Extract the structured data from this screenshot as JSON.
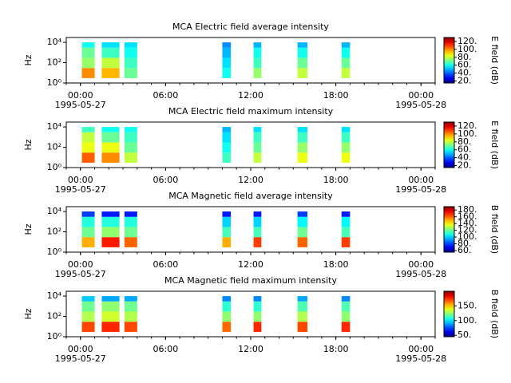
{
  "chart_data": [
    {
      "type": "heatmap",
      "title": "MCA  Electric field average intensity",
      "ylabel": "Hz",
      "yscale": "log",
      "xlim": [
        -1,
        25
      ],
      "xticks": [
        {
          "value": 0,
          "label": "00:00"
        },
        {
          "value": 6,
          "label": "06:00"
        },
        {
          "value": 12,
          "label": "12:00"
        },
        {
          "value": 18,
          "label": "18:00"
        },
        {
          "value": 24,
          "label": "00:00"
        }
      ],
      "x_dates": [
        {
          "value": 0,
          "label": "1995-05-27"
        },
        {
          "value": 24,
          "label": "1995-05-28"
        }
      ],
      "ylim": [
        1,
        30000
      ],
      "yticks": [
        {
          "value": 1,
          "label": "10⁰"
        },
        {
          "value": 100,
          "label": "10²"
        },
        {
          "value": 10000,
          "label": "10⁴"
        }
      ],
      "x_intervals": [
        [
          0.1,
          1.0
        ],
        [
          1.5,
          2.75
        ],
        [
          3.1,
          4.0
        ],
        [
          10.0,
          10.6
        ],
        [
          12.2,
          12.75
        ],
        [
          15.3,
          16.0
        ],
        [
          18.4,
          19.0
        ]
      ],
      "freq_bins": [
        3,
        30,
        300,
        3000,
        10000
      ],
      "values": [
        [
          100,
          75,
          70,
          60
        ],
        [
          95,
          80,
          65,
          55
        ],
        [
          70,
          65,
          60,
          55
        ],
        [
          60,
          55,
          50,
          45
        ],
        [
          75,
          65,
          60,
          50
        ],
        [
          80,
          70,
          60,
          50
        ],
        [
          80,
          70,
          60,
          50
        ]
      ],
      "zlabel": "E field (dB)",
      "zlim": [
        15,
        130
      ],
      "zticks": [
        {
          "value": 20,
          "label": "20."
        },
        {
          "value": 40,
          "label": "40."
        },
        {
          "value": 60,
          "label": "60."
        },
        {
          "value": 80,
          "label": "80."
        },
        {
          "value": 100,
          "label": "100."
        },
        {
          "value": 120,
          "label": "120."
        }
      ]
    },
    {
      "type": "heatmap",
      "title": "MCA  Electric field maximum intensity",
      "ylabel": "Hz",
      "yscale": "log",
      "xlim": [
        -1,
        25
      ],
      "xticks": [
        {
          "value": 0,
          "label": "00:00"
        },
        {
          "value": 6,
          "label": "06:00"
        },
        {
          "value": 12,
          "label": "12:00"
        },
        {
          "value": 18,
          "label": "18:00"
        },
        {
          "value": 24,
          "label": "00:00"
        }
      ],
      "x_dates": [
        {
          "value": 0,
          "label": "1995-05-27"
        },
        {
          "value": 24,
          "label": "1995-05-28"
        }
      ],
      "ylim": [
        1,
        30000
      ],
      "yticks": [
        {
          "value": 1,
          "label": "10⁰"
        },
        {
          "value": 100,
          "label": "10²"
        },
        {
          "value": 10000,
          "label": "10⁴"
        }
      ],
      "x_intervals": [
        [
          0.1,
          1.0
        ],
        [
          1.5,
          2.75
        ],
        [
          3.1,
          4.0
        ],
        [
          10.0,
          10.6
        ],
        [
          12.2,
          12.75
        ],
        [
          15.3,
          16.0
        ],
        [
          18.4,
          19.0
        ]
      ],
      "freq_bins": [
        3,
        30,
        300,
        3000,
        10000
      ],
      "values": [
        [
          105,
          85,
          80,
          65
        ],
        [
          100,
          85,
          70,
          60
        ],
        [
          80,
          70,
          65,
          60
        ],
        [
          65,
          60,
          55,
          50
        ],
        [
          80,
          70,
          65,
          55
        ],
        [
          85,
          75,
          65,
          55
        ],
        [
          85,
          75,
          65,
          55
        ]
      ],
      "zlabel": "E field (dB)",
      "zlim": [
        15,
        130
      ],
      "zticks": [
        {
          "value": 20,
          "label": "20."
        },
        {
          "value": 40,
          "label": "40."
        },
        {
          "value": 60,
          "label": "60."
        },
        {
          "value": 80,
          "label": "80."
        },
        {
          "value": 100,
          "label": "100."
        },
        {
          "value": 120,
          "label": "120."
        }
      ]
    },
    {
      "type": "heatmap",
      "title": "MCA  Magnetic field average intensity",
      "ylabel": "Hz",
      "yscale": "log",
      "xlim": [
        -1,
        25
      ],
      "xticks": [
        {
          "value": 0,
          "label": "00:00"
        },
        {
          "value": 6,
          "label": "06:00"
        },
        {
          "value": 12,
          "label": "12:00"
        },
        {
          "value": 18,
          "label": "18:00"
        },
        {
          "value": 24,
          "label": "00:00"
        }
      ],
      "x_dates": [
        {
          "value": 0,
          "label": "1995-05-27"
        },
        {
          "value": 24,
          "label": "1995-05-28"
        }
      ],
      "ylim": [
        1,
        30000
      ],
      "yticks": [
        {
          "value": 1,
          "label": "10⁰"
        },
        {
          "value": 100,
          "label": "10²"
        },
        {
          "value": 10000,
          "label": "10⁴"
        }
      ],
      "x_intervals": [
        [
          0.1,
          1.0
        ],
        [
          1.5,
          2.75
        ],
        [
          3.1,
          4.0
        ],
        [
          10.0,
          10.6
        ],
        [
          12.2,
          12.75
        ],
        [
          15.3,
          16.0
        ],
        [
          18.4,
          19.0
        ]
      ],
      "freq_bins": [
        3,
        30,
        300,
        3000,
        10000
      ],
      "values": [
        [
          150,
          120,
          110,
          80
        ],
        [
          170,
          125,
          110,
          75
        ],
        [
          160,
          120,
          110,
          75
        ],
        [
          150,
          115,
          100,
          75
        ],
        [
          165,
          115,
          100,
          75
        ],
        [
          160,
          120,
          105,
          80
        ],
        [
          165,
          115,
          105,
          75
        ]
      ],
      "zlabel": "B field (dB)",
      "zlim": [
        55,
        190
      ],
      "zticks": [
        {
          "value": 60,
          "label": "60."
        },
        {
          "value": 80,
          "label": "80."
        },
        {
          "value": 100,
          "label": "100."
        },
        {
          "value": 120,
          "label": "120."
        },
        {
          "value": 140,
          "label": "140."
        },
        {
          "value": 160,
          "label": "160."
        },
        {
          "value": 180,
          "label": "180."
        }
      ]
    },
    {
      "type": "heatmap",
      "title": "MCA  Magnetic field maximum intensity",
      "ylabel": "Hz",
      "yscale": "log",
      "xlim": [
        -1,
        25
      ],
      "xticks": [
        {
          "value": 0,
          "label": "00:00"
        },
        {
          "value": 6,
          "label": "06:00"
        },
        {
          "value": 12,
          "label": "12:00"
        },
        {
          "value": 18,
          "label": "18:00"
        },
        {
          "value": 24,
          "label": "00:00"
        }
      ],
      "x_dates": [
        {
          "value": 0,
          "label": "1995-05-27"
        },
        {
          "value": 24,
          "label": "1995-05-28"
        }
      ],
      "ylim": [
        1,
        30000
      ],
      "yticks": [
        {
          "value": 1,
          "label": "10⁰"
        },
        {
          "value": 100,
          "label": "10²"
        },
        {
          "value": 10000,
          "label": "10⁴"
        }
      ],
      "x_intervals": [
        [
          0.1,
          1.0
        ],
        [
          1.5,
          2.75
        ],
        [
          3.1,
          4.0
        ],
        [
          10.0,
          10.6
        ],
        [
          12.2,
          12.75
        ],
        [
          15.3,
          16.0
        ],
        [
          18.4,
          19.0
        ]
      ],
      "freq_bins": [
        3,
        30,
        300,
        3000,
        10000
      ],
      "values": [
        [
          170,
          130,
          120,
          95
        ],
        [
          175,
          135,
          125,
          90
        ],
        [
          170,
          130,
          120,
          90
        ],
        [
          165,
          125,
          110,
          85
        ],
        [
          175,
          125,
          110,
          85
        ],
        [
          170,
          130,
          115,
          90
        ],
        [
          175,
          125,
          115,
          85
        ]
      ],
      "zlabel": "B field (dB)",
      "zlim": [
        45,
        200
      ],
      "zticks": [
        {
          "value": 50,
          "label": "50."
        },
        {
          "value": 100,
          "label": "100."
        },
        {
          "value": 150,
          "label": "150."
        }
      ]
    }
  ]
}
